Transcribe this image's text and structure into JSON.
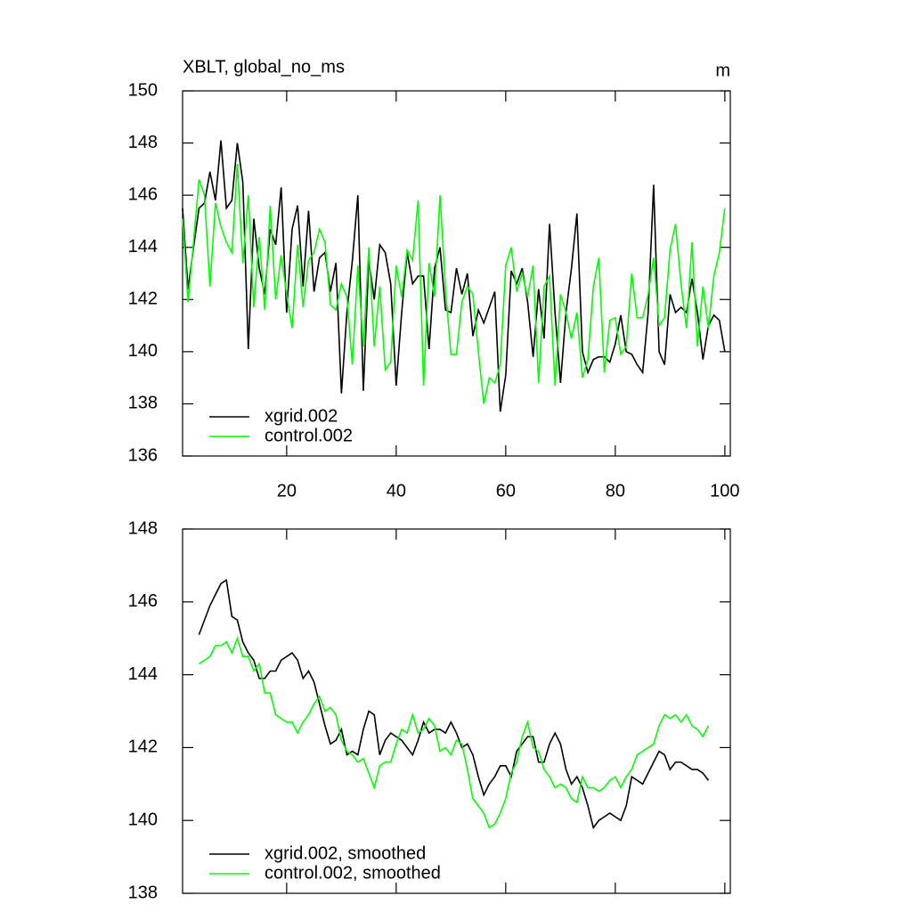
{
  "chart_data": [
    {
      "type": "line",
      "title": "XBLT, global_no_ms",
      "subtitle": "m",
      "x": [
        1,
        2,
        3,
        4,
        5,
        6,
        7,
        8,
        9,
        10,
        11,
        12,
        13,
        14,
        15,
        16,
        17,
        18,
        19,
        20,
        21,
        22,
        23,
        24,
        25,
        26,
        27,
        28,
        29,
        30,
        31,
        32,
        33,
        34,
        35,
        36,
        37,
        38,
        39,
        40,
        41,
        42,
        43,
        44,
        45,
        46,
        47,
        48,
        49,
        50,
        51,
        52,
        53,
        54,
        55,
        56,
        57,
        58,
        59,
        60,
        61,
        62,
        63,
        64,
        65,
        66,
        67,
        68,
        69,
        70,
        71,
        72,
        73,
        74,
        75,
        76,
        77,
        78,
        79,
        80,
        81,
        82,
        83,
        84,
        85,
        86,
        87,
        88,
        89,
        90,
        91,
        92,
        93,
        94,
        95,
        96,
        97,
        98,
        99,
        100
      ],
      "series": [
        {
          "name": "xgrid.002",
          "color": "#000000",
          "values": [
            145.5,
            142.4,
            144,
            145.5,
            145.7,
            146.9,
            145.8,
            148.1,
            145.5,
            145.8,
            148,
            146.5,
            140.1,
            145.1,
            143.2,
            142.2,
            144.7,
            144.1,
            146.3,
            141.5,
            144.7,
            145.6,
            142.5,
            145.4,
            142.3,
            143.6,
            143.8,
            142.3,
            143.4,
            138.4,
            141.5,
            143.5,
            146,
            138.5,
            143.5,
            142,
            144.1,
            143.8,
            142.6,
            138.7,
            141.5,
            143.8,
            142.6,
            142.9,
            142.9,
            140.1,
            143.2,
            144,
            141.6,
            141.5,
            143.2,
            142.2,
            143,
            140.6,
            141.6,
            141.1,
            141.7,
            142.3,
            137.7,
            139.1,
            143.1,
            142.6,
            143.2,
            141.9,
            139.8,
            142.4,
            140.5,
            144.9,
            141.5,
            138.8,
            141.5,
            143.2,
            145.3,
            140,
            139.2,
            139.7,
            139.8,
            139.8,
            139.6,
            140.3,
            141.4,
            140,
            139.9,
            139.5,
            139.2,
            141.5,
            146.4,
            140,
            139.5,
            142.2,
            141.5,
            141.7,
            141.5,
            142.8,
            141.5,
            139.7,
            141,
            141.4,
            141.2,
            140
          ]
        },
        {
          "name": "control.002",
          "color": "#00ff00",
          "values": [
            145.1,
            141.9,
            144.2,
            146.6,
            146,
            142.5,
            145.7,
            144.8,
            144.2,
            143.8,
            147.2,
            143.4,
            146,
            141.7,
            144.4,
            141.6,
            145.6,
            142,
            143.7,
            142.2,
            140.9,
            144.1,
            141.7,
            143.5,
            143.8,
            144.7,
            144.2,
            141.8,
            141.6,
            142.6,
            142.1,
            139.5,
            143.3,
            140.2,
            144,
            140.2,
            142.5,
            139.3,
            139.6,
            143.3,
            142.1,
            143.9,
            143.5,
            145.8,
            138.7,
            143.4,
            142.1,
            146,
            142.4,
            139.9,
            139.9,
            141.9,
            142.5,
            142.2,
            140,
            138,
            139,
            138.8,
            139.5,
            143.3,
            144,
            142.3,
            143,
            142.1,
            143.3,
            138.8,
            142.5,
            142.9,
            138.7,
            142.2,
            141.5,
            140.5,
            141.5,
            139,
            139.7,
            142.5,
            143.6,
            139.2,
            141.2,
            141.3,
            139.9,
            140.2,
            143,
            141.3,
            141.3,
            142.2,
            143.6,
            141,
            141.3,
            143.9,
            144.9,
            142.6,
            140.9,
            144.2,
            140.2,
            142.5,
            140.9,
            142.9,
            143.8,
            145.5
          ]
        }
      ],
      "xlim": [
        1,
        101
      ],
      "xticks": [
        20,
        40,
        60,
        80,
        100
      ],
      "xticklabels": true,
      "ylim": [
        136,
        150
      ],
      "yticks": [
        136,
        138,
        140,
        142,
        144,
        146,
        148,
        150
      ],
      "legend": "lower left"
    },
    {
      "type": "line",
      "x": [
        4,
        5,
        6,
        7,
        8,
        9,
        10,
        11,
        12,
        13,
        14,
        15,
        16,
        17,
        18,
        19,
        20,
        21,
        22,
        23,
        24,
        25,
        26,
        27,
        28,
        29,
        30,
        31,
        32,
        33,
        34,
        35,
        36,
        37,
        38,
        39,
        40,
        41,
        42,
        43,
        44,
        45,
        46,
        47,
        48,
        49,
        50,
        51,
        52,
        53,
        54,
        55,
        56,
        57,
        58,
        59,
        60,
        61,
        62,
        63,
        64,
        65,
        66,
        67,
        68,
        69,
        70,
        71,
        72,
        73,
        74,
        75,
        76,
        77,
        78,
        79,
        80,
        81,
        82,
        83,
        84,
        85,
        86,
        87,
        88,
        89,
        90,
        91,
        92,
        93,
        94,
        95,
        96,
        97
      ],
      "series": [
        {
          "name": "xgrid.002, smoothed",
          "color": "#000000",
          "values": [
            145.1,
            145.5,
            145.9,
            146.2,
            146.5,
            146.6,
            145.6,
            145.5,
            144.9,
            144.6,
            144.4,
            143.9,
            143.9,
            144.1,
            144.1,
            144.4,
            144.5,
            144.6,
            144.4,
            143.9,
            144.1,
            143.8,
            143.2,
            142.6,
            142.1,
            142.2,
            142.5,
            141.8,
            141.9,
            141.8,
            142.5,
            143,
            142.9,
            141.8,
            142.2,
            142.4,
            142.3,
            142.2,
            142,
            141.8,
            142.2,
            142.7,
            142.4,
            142.5,
            142.5,
            142.4,
            142.7,
            142.4,
            142,
            142.1,
            141.8,
            141.2,
            140.7,
            141,
            141.2,
            141.5,
            141.5,
            141.2,
            141.9,
            142.1,
            142.3,
            142.3,
            141.6,
            141.6,
            142.1,
            142.4,
            142.1,
            141.4,
            141,
            141.2,
            140.9,
            140.4,
            139.8,
            140,
            140.1,
            140.2,
            140.1,
            140,
            140.4,
            141.2,
            141.1,
            141,
            141.3,
            141.6,
            141.9,
            141.8,
            141.4,
            141.6,
            141.6,
            141.5,
            141.4,
            141.4,
            141.3,
            141.1
          ]
        },
        {
          "name": "control.002, smoothed",
          "color": "#00ff00",
          "values": [
            144.3,
            144.4,
            144.5,
            144.8,
            144.8,
            144.9,
            144.6,
            145,
            144.5,
            144.5,
            144.1,
            144.3,
            143.5,
            143.5,
            142.9,
            142.8,
            142.7,
            142.7,
            142.4,
            142.7,
            142.9,
            143.2,
            143.4,
            143,
            143.1,
            142.9,
            142.2,
            141.9,
            141.8,
            141.6,
            141.7,
            141.3,
            140.9,
            141.5,
            141.6,
            141.6,
            142.1,
            142.5,
            142.4,
            142.9,
            142.4,
            142.5,
            142.8,
            142.6,
            141.9,
            142,
            141.8,
            142.2,
            142.1,
            141.4,
            140.6,
            140.4,
            140.2,
            139.8,
            139.9,
            140.2,
            140.6,
            141.3,
            141.6,
            142.3,
            142.7,
            142,
            141.9,
            141.4,
            141.2,
            140.9,
            141,
            140.9,
            140.6,
            140.5,
            141.2,
            140.9,
            140.9,
            140.8,
            140.9,
            141.1,
            141.2,
            140.9,
            141.2,
            141.4,
            141.8,
            141.9,
            142,
            142.1,
            142.6,
            142.9,
            142.8,
            142.9,
            142.7,
            142.9,
            142.6,
            142.5,
            142.3,
            142.6
          ]
        }
      ],
      "xlim": [
        1,
        101
      ],
      "xticks": [
        20,
        40,
        60,
        80,
        100
      ],
      "xticklabels": false,
      "ylim": [
        138,
        148
      ],
      "yticks": [
        138,
        140,
        142,
        144,
        146,
        148
      ],
      "legend": "lower left"
    }
  ]
}
